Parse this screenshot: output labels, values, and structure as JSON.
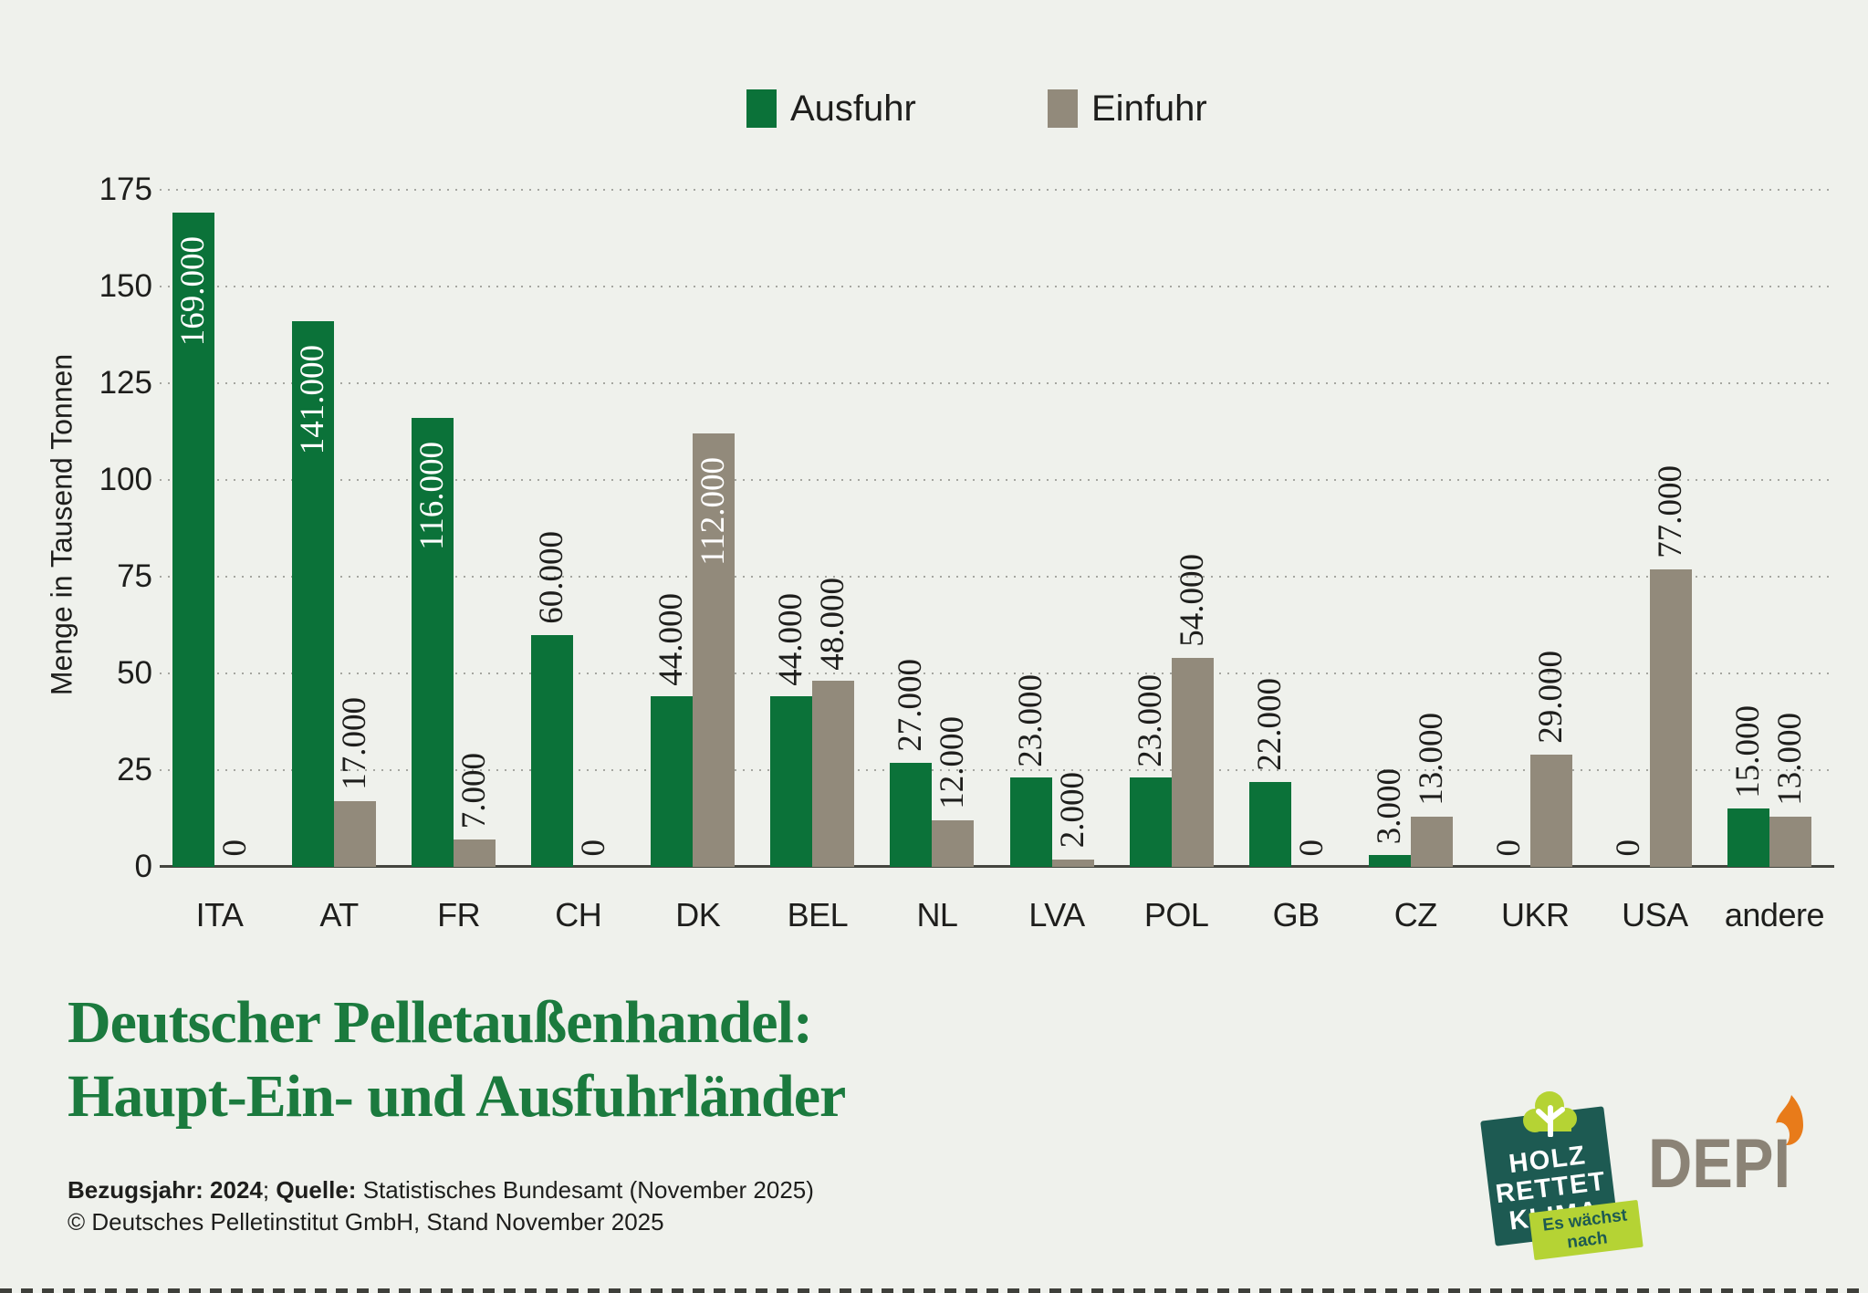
{
  "legend": {
    "items": [
      {
        "label": "Ausfuhr",
        "color": "#0b7239"
      },
      {
        "label": "Einfuhr",
        "color": "#928a7b"
      }
    ]
  },
  "chart_data": {
    "type": "bar",
    "title": "Deutscher Pelletaußenhandel: Haupt-Ein- und Ausfuhrländer",
    "ylabel": "Menge in Tausend Tonnen",
    "ylim": [
      0,
      175
    ],
    "yticks": [
      0,
      25,
      50,
      75,
      100,
      125,
      150,
      175
    ],
    "grid": "horizontal-dotted",
    "legend_position": "top",
    "categories": [
      "ITA",
      "AT",
      "FR",
      "CH",
      "DK",
      "BEL",
      "NL",
      "LVA",
      "POL",
      "GB",
      "CZ",
      "UKR",
      "USA",
      "andere"
    ],
    "series": [
      {
        "name": "Ausfuhr",
        "color": "#0b7239",
        "values": [
          169,
          141,
          116,
          60,
          44,
          44,
          27,
          23,
          23,
          22,
          3,
          0,
          0,
          15
        ],
        "labels": [
          "169.000",
          "141.000",
          "116.000",
          "60.000",
          "44.000",
          "44.000",
          "27.000",
          "23.000",
          "23.000",
          "22.000",
          "3.000",
          "0",
          "0",
          "15.000"
        ]
      },
      {
        "name": "Einfuhr",
        "color": "#928a7b",
        "values": [
          0,
          17,
          7,
          0,
          112,
          48,
          12,
          2,
          54,
          0,
          13,
          29,
          77,
          13
        ],
        "labels": [
          "0",
          "17.000",
          "7.000",
          "0",
          "112.000",
          "48.000",
          "12.000",
          "2.000",
          "54.000",
          "0",
          "13.000",
          "29.000",
          "77.000",
          "13.000"
        ]
      }
    ],
    "unit": "Tausend Tonnen"
  },
  "title": {
    "line1": "Deutscher Pelletaußenhandel:",
    "line2": "Haupt-Ein- und Ausfuhrländer",
    "color": "#1b7a3e"
  },
  "footer": {
    "bold1": "Bezugsjahr: 2024",
    "sep": "; ",
    "bold2": "Quelle:",
    "rest": " Statistisches Bundesamt (November 2025)",
    "line2": "© Deutsches Pelletinstitut GmbH, Stand November 2025"
  },
  "logos": {
    "holz_rettet_klima": {
      "line1": "HOLZ",
      "line2": "RETTET",
      "line3": "KLIMA",
      "badge_line1": "Es wächst",
      "badge_line2": "nach",
      "bg_color": "#1d5a52",
      "accent_color": "#b5d334"
    },
    "depi": {
      "text": "DEPI",
      "color": "#8b8376",
      "flame_color": "#e87b1a"
    }
  },
  "colors": {
    "background": "#eff1ec",
    "text": "#1e1e1c",
    "axis_line": "#44453f",
    "grid_dots": "#a5a6a0",
    "label_inside": "#ffffff"
  }
}
